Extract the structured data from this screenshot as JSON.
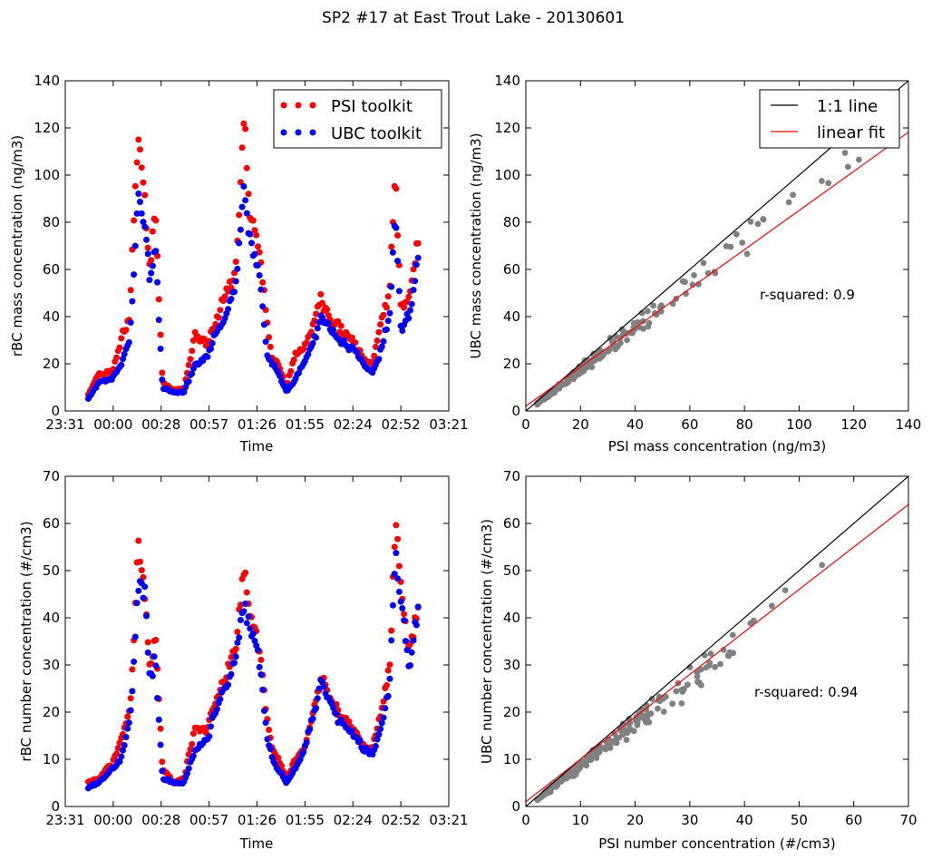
{
  "figure": {
    "title": "SP2 #17 at East Trout Lake - 20130601"
  },
  "chart_data": [
    {
      "id": "mass_time",
      "type": "scatter",
      "xlabel": "Time",
      "ylabel": "rBC mass concentration (ng/m3)",
      "xticks": [
        "23:31",
        "00:00",
        "00:28",
        "00:57",
        "01:26",
        "01:55",
        "02:24",
        "02:52",
        "03:21"
      ],
      "ylim": [
        0,
        140
      ],
      "yticks": [
        "0",
        "20",
        "40",
        "60",
        "80",
        "100",
        "120",
        "140"
      ],
      "legend": {
        "position": "top-right",
        "entries": [
          "PSI toolkit",
          "UBC toolkit"
        ]
      },
      "series": [
        {
          "name": "PSI toolkit",
          "color": "#ff0000",
          "marker": "circle"
        },
        {
          "name": "UBC toolkit",
          "color": "#0000ff",
          "marker": "circle"
        }
      ],
      "peaks_psi": [
        [
          5,
          7
        ],
        [
          12,
          15
        ],
        [
          22,
          17
        ],
        [
          28,
          30
        ],
        [
          34,
          40
        ],
        [
          37,
          85
        ],
        [
          40,
          117
        ],
        [
          45,
          84
        ],
        [
          48,
          60
        ],
        [
          52,
          85
        ],
        [
          57,
          12
        ],
        [
          65,
          9
        ],
        [
          72,
          9
        ],
        [
          80,
          33
        ],
        [
          88,
          28
        ],
        [
          96,
          40
        ],
        [
          101,
          50
        ],
        [
          108,
          58
        ],
        [
          114,
          124
        ],
        [
          118,
          84
        ],
        [
          122,
          76
        ],
        [
          126,
          62
        ],
        [
          130,
          38
        ],
        [
          134,
          22
        ],
        [
          138,
          20
        ],
        [
          144,
          10
        ],
        [
          150,
          25
        ],
        [
          156,
          26
        ],
        [
          164,
          40
        ],
        [
          168,
          48
        ],
        [
          174,
          40
        ],
        [
          180,
          36
        ],
        [
          186,
          32
        ],
        [
          192,
          28
        ],
        [
          198,
          22
        ],
        [
          204,
          20
        ],
        [
          210,
          38
        ],
        [
          216,
          50
        ],
        [
          220,
          101
        ],
        [
          224,
          44
        ],
        [
          230,
          48
        ],
        [
          236,
          72
        ]
      ],
      "peaks_ubc": [
        [
          5,
          5
        ],
        [
          12,
          12
        ],
        [
          22,
          14
        ],
        [
          28,
          20
        ],
        [
          34,
          30
        ],
        [
          37,
          60
        ],
        [
          40,
          94
        ],
        [
          45,
          76
        ],
        [
          48,
          54
        ],
        [
          52,
          68
        ],
        [
          57,
          10
        ],
        [
          65,
          8
        ],
        [
          72,
          8
        ],
        [
          80,
          20
        ],
        [
          88,
          22
        ],
        [
          96,
          36
        ],
        [
          101,
          40
        ],
        [
          108,
          52
        ],
        [
          114,
          95
        ],
        [
          118,
          73
        ],
        [
          122,
          66
        ],
        [
          126,
          52
        ],
        [
          130,
          25
        ],
        [
          134,
          20
        ],
        [
          138,
          16
        ],
        [
          144,
          8
        ],
        [
          150,
          14
        ],
        [
          156,
          20
        ],
        [
          164,
          32
        ],
        [
          168,
          40
        ],
        [
          174,
          36
        ],
        [
          180,
          30
        ],
        [
          186,
          28
        ],
        [
          192,
          26
        ],
        [
          198,
          20
        ],
        [
          204,
          16
        ],
        [
          210,
          26
        ],
        [
          216,
          40
        ],
        [
          220,
          86
        ],
        [
          224,
          35
        ],
        [
          230,
          40
        ],
        [
          236,
          64
        ]
      ]
    },
    {
      "id": "mass_corr",
      "type": "scatter",
      "xlabel": "PSI mass concentration (ng/m3)",
      "ylabel": "UBC mass concentration (ng/m3)",
      "xlim": [
        0,
        140
      ],
      "ylim": [
        0,
        140
      ],
      "xticks": [
        "0",
        "20",
        "40",
        "60",
        "80",
        "100",
        "120",
        "140"
      ],
      "yticks": [
        "0",
        "20",
        "40",
        "60",
        "80",
        "100",
        "120",
        "140"
      ],
      "fit": {
        "slope": 0.83,
        "intercept": 2.0
      },
      "annotation": "r-squared: 0.9",
      "legend": {
        "position": "top-right",
        "entries": [
          "1:1 line",
          "linear fit"
        ]
      },
      "series": [
        {
          "name": "1:1 line",
          "color": "#000000",
          "type": "line"
        },
        {
          "name": "linear fit",
          "color": "#ff0000",
          "type": "line"
        },
        {
          "color": "#808080",
          "type": "points"
        }
      ]
    },
    {
      "id": "number_time",
      "type": "scatter",
      "xlabel": "Time",
      "ylabel": "rBC number concentration (#/cm3)",
      "xticks": [
        "23:31",
        "00:00",
        "00:28",
        "00:57",
        "01:26",
        "01:55",
        "02:24",
        "02:52",
        "03:21"
      ],
      "ylim": [
        0,
        70
      ],
      "yticks": [
        "0",
        "10",
        "20",
        "30",
        "40",
        "50",
        "60",
        "70"
      ],
      "series": [
        {
          "name": "PSI toolkit",
          "color": "#ff0000",
          "marker": "circle"
        },
        {
          "name": "UBC toolkit",
          "color": "#0000ff",
          "marker": "circle"
        }
      ],
      "peaks_psi": [
        [
          5,
          5
        ],
        [
          12,
          6
        ],
        [
          22,
          9
        ],
        [
          28,
          14
        ],
        [
          34,
          20
        ],
        [
          37,
          35
        ],
        [
          40,
          56
        ],
        [
          45,
          43
        ],
        [
          48,
          30
        ],
        [
          52,
          37
        ],
        [
          57,
          8
        ],
        [
          65,
          5
        ],
        [
          72,
          6
        ],
        [
          80,
          17
        ],
        [
          88,
          16
        ],
        [
          96,
          24
        ],
        [
          101,
          28
        ],
        [
          108,
          33
        ],
        [
          114,
          50
        ],
        [
          118,
          39
        ],
        [
          122,
          38
        ],
        [
          126,
          31
        ],
        [
          130,
          19
        ],
        [
          134,
          12
        ],
        [
          138,
          10
        ],
        [
          144,
          6
        ],
        [
          150,
          10
        ],
        [
          156,
          12
        ],
        [
          164,
          22
        ],
        [
          168,
          28
        ],
        [
          174,
          24
        ],
        [
          180,
          20
        ],
        [
          186,
          18
        ],
        [
          192,
          16
        ],
        [
          198,
          13
        ],
        [
          204,
          12
        ],
        [
          210,
          20
        ],
        [
          216,
          29
        ],
        [
          220,
          60
        ],
        [
          224,
          46
        ],
        [
          230,
          33
        ],
        [
          236,
          43
        ]
      ],
      "peaks_ubc": [
        [
          5,
          4
        ],
        [
          12,
          5
        ],
        [
          22,
          8
        ],
        [
          28,
          10
        ],
        [
          34,
          18
        ],
        [
          37,
          30
        ],
        [
          40,
          49
        ],
        [
          45,
          43
        ],
        [
          48,
          27
        ],
        [
          52,
          31
        ],
        [
          57,
          6
        ],
        [
          65,
          5
        ],
        [
          72,
          5
        ],
        [
          80,
          12
        ],
        [
          88,
          14
        ],
        [
          96,
          22
        ],
        [
          101,
          25
        ],
        [
          108,
          31
        ],
        [
          114,
          44
        ],
        [
          118,
          37
        ],
        [
          122,
          35
        ],
        [
          126,
          28
        ],
        [
          130,
          15
        ],
        [
          134,
          10
        ],
        [
          138,
          8
        ],
        [
          144,
          5
        ],
        [
          150,
          8
        ],
        [
          156,
          12
        ],
        [
          164,
          20
        ],
        [
          168,
          27
        ],
        [
          174,
          22
        ],
        [
          180,
          18
        ],
        [
          186,
          17
        ],
        [
          192,
          15
        ],
        [
          198,
          12
        ],
        [
          204,
          11
        ],
        [
          210,
          17
        ],
        [
          216,
          25
        ],
        [
          220,
          53
        ],
        [
          224,
          44
        ],
        [
          230,
          29
        ],
        [
          236,
          42
        ]
      ]
    },
    {
      "id": "number_corr",
      "type": "scatter",
      "xlabel": "PSI number concentration (#/cm3)",
      "ylabel": "UBC number concentration (#/cm3)",
      "xlim": [
        0,
        70
      ],
      "ylim": [
        0,
        70
      ],
      "xticks": [
        "0",
        "10",
        "20",
        "30",
        "40",
        "50",
        "60",
        "70"
      ],
      "yticks": [
        "0",
        "10",
        "20",
        "30",
        "40",
        "50",
        "60",
        "70"
      ],
      "fit": {
        "slope": 0.9,
        "intercept": 1.0
      },
      "annotation": "r-squared: 0.94",
      "series": [
        {
          "name": "1:1 line",
          "color": "#000000",
          "type": "line"
        },
        {
          "name": "linear fit",
          "color": "#ff0000",
          "type": "line"
        },
        {
          "color": "#808080",
          "type": "points"
        }
      ]
    }
  ]
}
